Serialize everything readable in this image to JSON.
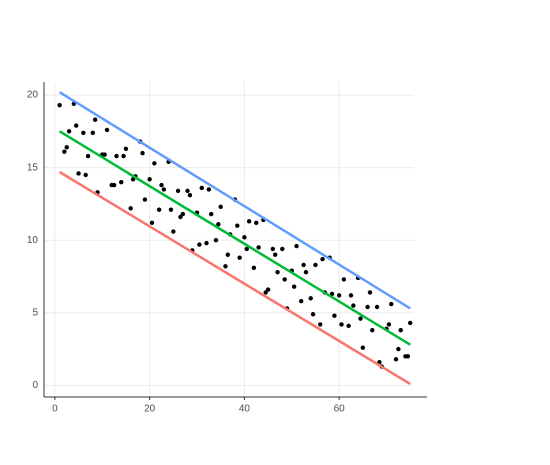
{
  "chart_data": {
    "type": "scatter",
    "xlim": [
      -2.3,
      75.8
    ],
    "ylim": [
      -0.8,
      20.9
    ],
    "xticks": [
      0,
      20,
      40,
      60
    ],
    "yticks": [
      0,
      5,
      10,
      15,
      20
    ],
    "grid": true,
    "series": [
      {
        "mode": "markers",
        "color": "#000000",
        "x": [
          1,
          2,
          3,
          4,
          5,
          6,
          7,
          8,
          9,
          10,
          11,
          12,
          13,
          14,
          15,
          16,
          17,
          18,
          19,
          20,
          21,
          22,
          23,
          24,
          25,
          26,
          27,
          28,
          29,
          30,
          31,
          32,
          33,
          34,
          35,
          36,
          37,
          38,
          39,
          40,
          41,
          42,
          43,
          44,
          45,
          46,
          47,
          48,
          49,
          50,
          51,
          52,
          53,
          54,
          55,
          56,
          57,
          58,
          59,
          60,
          61,
          62,
          63,
          64,
          65,
          66,
          67,
          68,
          69,
          70,
          71,
          72,
          73,
          74,
          75,
          2.5,
          4.5,
          6.5,
          8.5,
          10.5,
          12.5,
          14.5,
          16.5,
          18.5,
          20.5,
          22.5,
          24.5,
          26.5,
          28.5,
          30.5,
          32.5,
          34.5,
          36.5,
          38.5,
          40.5,
          42.5,
          44.5,
          46.5,
          48.5,
          50.5,
          52.5,
          54.5,
          56.5,
          58.5,
          60.5,
          62.5,
          64.5,
          66.5,
          68.5,
          70.5,
          72.5,
          74.5
        ],
        "values": [
          19.3,
          16.1,
          17.5,
          19.4,
          14.6,
          17.4,
          15.8,
          17.4,
          13.3,
          15.9,
          17.6,
          13.8,
          15.8,
          14.0,
          16.3,
          12.2,
          14.4,
          16.8,
          12.8,
          14.2,
          15.3,
          12.1,
          13.5,
          15.4,
          10.6,
          13.4,
          11.8,
          13.4,
          9.3,
          11.9,
          13.6,
          9.8,
          11.8,
          10.0,
          12.3,
          8.2,
          10.4,
          12.8,
          8.8,
          10.2,
          11.3,
          8.1,
          9.5,
          11.4,
          6.6,
          9.4,
          7.8,
          9.4,
          5.3,
          7.9,
          9.6,
          5.8,
          7.8,
          6.0,
          8.3,
          4.2,
          6.4,
          8.8,
          4.8,
          6.2,
          7.3,
          4.1,
          5.5,
          7.4,
          2.6,
          5.4,
          3.8,
          5.4,
          1.3,
          3.9,
          5.6,
          1.8,
          3.8,
          2.0,
          4.3,
          16.4,
          17.9,
          14.5,
          18.3,
          15.9,
          13.8,
          15.8,
          14.2,
          16.0,
          11.2,
          13.8,
          12.1,
          11.6,
          13.1,
          9.7,
          13.5,
          11.1,
          9.0,
          11.0,
          9.4,
          11.2,
          6.4,
          9.0,
          7.3,
          6.8,
          8.3,
          4.9,
          8.7,
          6.3,
          4.2,
          6.2,
          4.6,
          6.4,
          1.6,
          4.2,
          2.5,
          2.0
        ]
      },
      {
        "mode": "lines",
        "color": "#619cff",
        "x": [
          1,
          75
        ],
        "values": [
          20.2,
          5.3
        ]
      },
      {
        "mode": "lines",
        "color": "#00ba38",
        "x": [
          1,
          75
        ],
        "values": [
          17.5,
          2.8
        ]
      },
      {
        "mode": "lines",
        "color": "#f8766d",
        "x": [
          1,
          75
        ],
        "values": [
          14.7,
          0.1
        ]
      }
    ]
  }
}
